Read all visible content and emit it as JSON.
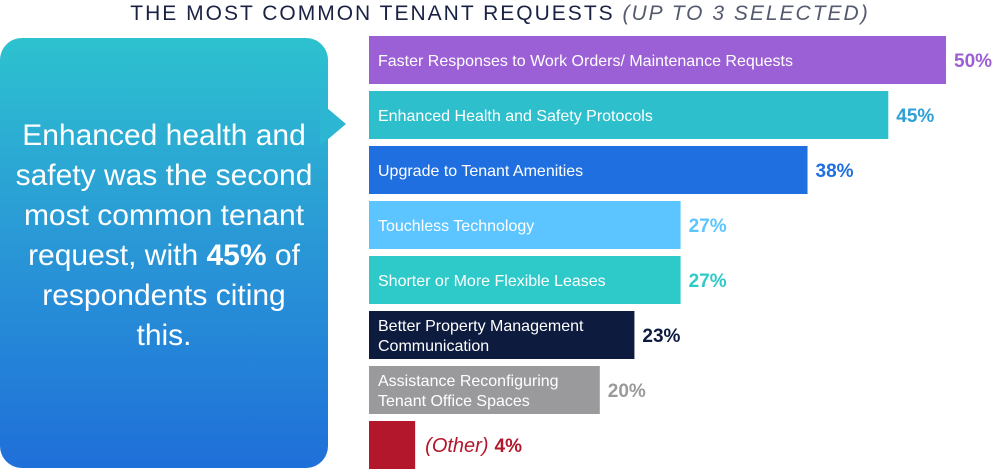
{
  "title": {
    "main": "THE MOST COMMON TENANT REQUESTS",
    "note": "(UP TO 3 SELECTED)"
  },
  "callout": {
    "text_before": "Enhanced health and safety was the second most common tenant request, with",
    "highlight": "45%",
    "text_after": "of respondents citing this."
  },
  "chart_data": {
    "type": "bar",
    "orientation": "horizontal",
    "title": "THE MOST COMMON TENANT REQUESTS (UP TO 3 SELECTED)",
    "categories": [
      "Faster Responses to Work Orders/ Maintenance Requests",
      "Enhanced Health and Safety Protocols",
      "Upgrade to Tenant Amenities",
      "Touchless Technology",
      "Shorter or More Flexible Leases",
      "Better Property Management Communication",
      "Assistance Reconfiguring Tenant Office Spaces",
      "(Other)"
    ],
    "values": [
      50,
      45,
      38,
      27,
      27,
      23,
      20,
      4
    ],
    "value_labels": [
      "50%",
      "45%",
      "38%",
      "27%",
      "27%",
      "23%",
      "20%",
      "4%"
    ],
    "label_lines": [
      [
        "Faster Responses to Work Orders/ Maintenance Requests"
      ],
      [
        "Enhanced Health and Safety Protocols"
      ],
      [
        "Upgrade to Tenant Amenities"
      ],
      [
        "Touchless Technology"
      ],
      [
        "Shorter or More Flexible Leases"
      ],
      [
        "Better Property Management",
        "Communication"
      ],
      [
        "Assistance Reconfiguring",
        "Tenant Office Spaces"
      ],
      [
        "(Other)"
      ]
    ],
    "colors": [
      "#9b5fd6",
      "#2ebfcc",
      "#1f6fe0",
      "#5cc5ff",
      "#2ec9c9",
      "#0d1b3e",
      "#9a9a9c",
      "#b3172b"
    ],
    "value_colors": [
      "#9b5fd6",
      "#2e9fd6",
      "#1f6fe0",
      "#5cc5ff",
      "#2ec9c9",
      "#0d1b3e",
      "#9a9a9c",
      "#b3172b"
    ],
    "label_inside": [
      true,
      true,
      true,
      true,
      true,
      true,
      true,
      false
    ],
    "xlim": [
      0,
      50
    ]
  }
}
